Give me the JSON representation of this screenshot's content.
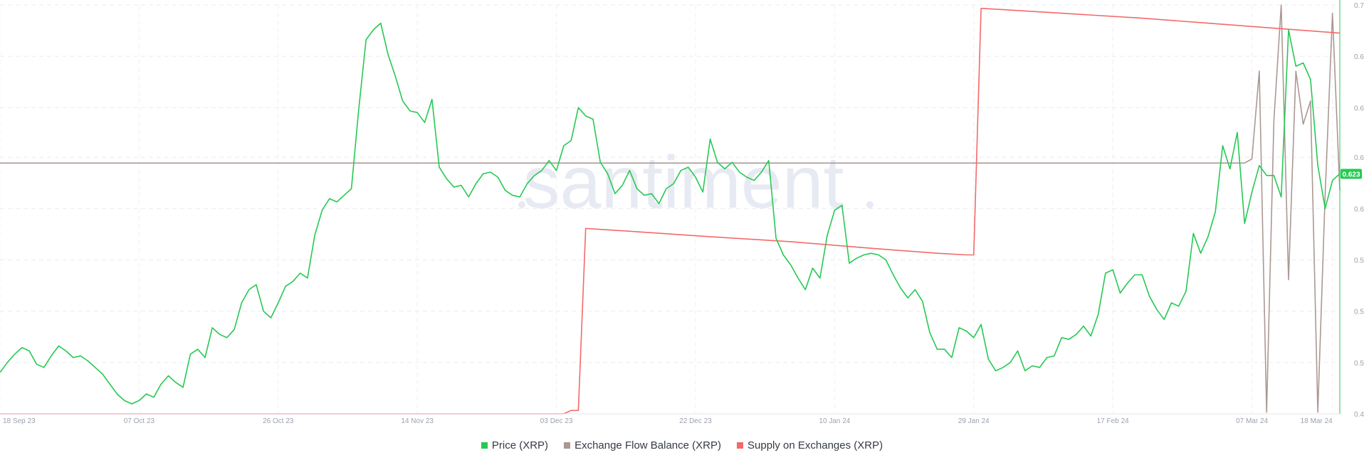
{
  "chart_data": {
    "type": "line",
    "watermark": "santiment",
    "x_ticks": [
      "18 Sep 23",
      "07 Oct 23",
      "26 Oct 23",
      "14 Nov 23",
      "03 Dec 23",
      "22 Dec 23",
      "10 Jan 24",
      "29 Jan 24",
      "17 Feb 24",
      "07 Mar 24",
      "18 Mar 24"
    ],
    "y_ticks": [
      "0.478",
      "0.509",
      "0.54",
      "0.571",
      "0.602",
      "0.633",
      "0.663",
      "0.694",
      "0.725"
    ],
    "ylim": [
      0.478,
      0.725
    ],
    "current_value_label": "0.623",
    "legend_position": "bottom-center",
    "grid": true,
    "series": [
      {
        "name": "Price (XRP)",
        "color": "#26c953",
        "points": [
          [
            "2023-09-18",
            0.503
          ],
          [
            "2023-09-19",
            0.509
          ],
          [
            "2023-09-20",
            0.514
          ],
          [
            "2023-09-21",
            0.518
          ],
          [
            "2023-09-22",
            0.516
          ],
          [
            "2023-09-23",
            0.508
          ],
          [
            "2023-09-24",
            0.506
          ],
          [
            "2023-09-25",
            0.513
          ],
          [
            "2023-09-26",
            0.519
          ],
          [
            "2023-09-27",
            0.516
          ],
          [
            "2023-09-28",
            0.512
          ],
          [
            "2023-09-29",
            0.513
          ],
          [
            "2023-09-30",
            0.51
          ],
          [
            "2023-10-01",
            0.506
          ],
          [
            "2023-10-02",
            0.502
          ],
          [
            "2023-10-03",
            0.496
          ],
          [
            "2023-10-04",
            0.49
          ],
          [
            "2023-10-05",
            0.486
          ],
          [
            "2023-10-06",
            0.484
          ],
          [
            "2023-10-07",
            0.486
          ],
          [
            "2023-10-08",
            0.49
          ],
          [
            "2023-10-09",
            0.488
          ],
          [
            "2023-10-10",
            0.496
          ],
          [
            "2023-10-11",
            0.501
          ],
          [
            "2023-10-12",
            0.497
          ],
          [
            "2023-10-13",
            0.494
          ],
          [
            "2023-10-14",
            0.514
          ],
          [
            "2023-10-15",
            0.517
          ],
          [
            "2023-10-16",
            0.512
          ],
          [
            "2023-10-17",
            0.53
          ],
          [
            "2023-10-18",
            0.526
          ],
          [
            "2023-10-19",
            0.524
          ],
          [
            "2023-10-20",
            0.529
          ],
          [
            "2023-10-21",
            0.545
          ],
          [
            "2023-10-22",
            0.553
          ],
          [
            "2023-10-23",
            0.556
          ],
          [
            "2023-10-24",
            0.54
          ],
          [
            "2023-10-25",
            0.536
          ],
          [
            "2023-10-26",
            0.545
          ],
          [
            "2023-10-27",
            0.555
          ],
          [
            "2023-10-28",
            0.558
          ],
          [
            "2023-10-29",
            0.563
          ],
          [
            "2023-10-30",
            0.56
          ],
          [
            "2023-10-31",
            0.586
          ],
          [
            "2023-11-01",
            0.601
          ],
          [
            "2023-11-02",
            0.608
          ],
          [
            "2023-11-03",
            0.606
          ],
          [
            "2023-11-04",
            0.61
          ],
          [
            "2023-11-05",
            0.614
          ],
          [
            "2023-11-06",
            0.662
          ],
          [
            "2023-11-07",
            0.704
          ],
          [
            "2023-11-08",
            0.71
          ],
          [
            "2023-11-09",
            0.714
          ],
          [
            "2023-11-10",
            0.695
          ],
          [
            "2023-11-11",
            0.682
          ],
          [
            "2023-11-12",
            0.667
          ],
          [
            "2023-11-13",
            0.661
          ],
          [
            "2023-11-14",
            0.66
          ],
          [
            "2023-11-15",
            0.654
          ],
          [
            "2023-11-16",
            0.668
          ],
          [
            "2023-11-17",
            0.627
          ],
          [
            "2023-11-18",
            0.62
          ],
          [
            "2023-11-19",
            0.615
          ],
          [
            "2023-11-20",
            0.616
          ],
          [
            "2023-11-21",
            0.609
          ],
          [
            "2023-11-22",
            0.617
          ],
          [
            "2023-11-23",
            0.623
          ],
          [
            "2023-11-24",
            0.624
          ],
          [
            "2023-11-25",
            0.621
          ],
          [
            "2023-11-26",
            0.613
          ],
          [
            "2023-11-27",
            0.61
          ],
          [
            "2023-11-28",
            0.609
          ],
          [
            "2023-11-29",
            0.617
          ],
          [
            "2023-11-30",
            0.622
          ],
          [
            "2023-12-01",
            0.625
          ],
          [
            "2023-12-02",
            0.631
          ],
          [
            "2023-12-03",
            0.625
          ],
          [
            "2023-12-04",
            0.64
          ],
          [
            "2023-12-05",
            0.643
          ],
          [
            "2023-12-06",
            0.663
          ],
          [
            "2023-12-07",
            0.658
          ],
          [
            "2023-12-08",
            0.656
          ],
          [
            "2023-12-09",
            0.63
          ],
          [
            "2023-12-10",
            0.623
          ],
          [
            "2023-12-11",
            0.611
          ],
          [
            "2023-12-12",
            0.616
          ],
          [
            "2023-12-13",
            0.625
          ],
          [
            "2023-12-14",
            0.614
          ],
          [
            "2023-12-15",
            0.61
          ],
          [
            "2023-12-16",
            0.611
          ],
          [
            "2023-12-17",
            0.605
          ],
          [
            "2023-12-18",
            0.614
          ],
          [
            "2023-12-19",
            0.617
          ],
          [
            "2023-12-20",
            0.625
          ],
          [
            "2023-12-21",
            0.627
          ],
          [
            "2023-12-22",
            0.621
          ],
          [
            "2023-12-23",
            0.612
          ],
          [
            "2023-12-24",
            0.644
          ],
          [
            "2023-12-25",
            0.63
          ],
          [
            "2023-12-26",
            0.626
          ],
          [
            "2023-12-27",
            0.63
          ],
          [
            "2023-12-28",
            0.624
          ],
          [
            "2023-12-29",
            0.621
          ],
          [
            "2023-12-30",
            0.619
          ],
          [
            "2023-12-31",
            0.624
          ],
          [
            "2024-01-01",
            0.631
          ],
          [
            "2024-01-02",
            0.584
          ],
          [
            "2024-01-03",
            0.574
          ],
          [
            "2024-01-04",
            0.568
          ],
          [
            "2024-01-05",
            0.56
          ],
          [
            "2024-01-06",
            0.553
          ],
          [
            "2024-01-07",
            0.566
          ],
          [
            "2024-01-08",
            0.56
          ],
          [
            "2024-01-09",
            0.586
          ],
          [
            "2024-01-10",
            0.601
          ],
          [
            "2024-01-11",
            0.604
          ],
          [
            "2024-01-12",
            0.569
          ],
          [
            "2024-01-13",
            0.572
          ],
          [
            "2024-01-14",
            0.574
          ],
          [
            "2024-01-15",
            0.575
          ],
          [
            "2024-01-16",
            0.574
          ],
          [
            "2024-01-17",
            0.571
          ],
          [
            "2024-01-18",
            0.562
          ],
          [
            "2024-01-19",
            0.554
          ],
          [
            "2024-01-20",
            0.548
          ],
          [
            "2024-01-21",
            0.553
          ],
          [
            "2024-01-22",
            0.546
          ],
          [
            "2024-01-23",
            0.527
          ],
          [
            "2024-01-24",
            0.517
          ],
          [
            "2024-01-25",
            0.517
          ],
          [
            "2024-01-26",
            0.512
          ],
          [
            "2024-01-27",
            0.53
          ],
          [
            "2024-01-28",
            0.528
          ],
          [
            "2024-01-29",
            0.524
          ],
          [
            "2024-01-30",
            0.532
          ],
          [
            "2024-01-31",
            0.511
          ],
          [
            "2024-02-01",
            0.504
          ],
          [
            "2024-02-02",
            0.506
          ],
          [
            "2024-02-03",
            0.509
          ],
          [
            "2024-02-04",
            0.516
          ],
          [
            "2024-02-05",
            0.504
          ],
          [
            "2024-02-06",
            0.507
          ],
          [
            "2024-02-07",
            0.506
          ],
          [
            "2024-02-08",
            0.512
          ],
          [
            "2024-02-09",
            0.513
          ],
          [
            "2024-02-10",
            0.524
          ],
          [
            "2024-02-11",
            0.523
          ],
          [
            "2024-02-12",
            0.526
          ],
          [
            "2024-02-13",
            0.531
          ],
          [
            "2024-02-14",
            0.525
          ],
          [
            "2024-02-15",
            0.538
          ],
          [
            "2024-02-16",
            0.563
          ],
          [
            "2024-02-17",
            0.565
          ],
          [
            "2024-02-18",
            0.551
          ],
          [
            "2024-02-19",
            0.557
          ],
          [
            "2024-02-20",
            0.562
          ],
          [
            "2024-02-21",
            0.562
          ],
          [
            "2024-02-22",
            0.549
          ],
          [
            "2024-02-23",
            0.541
          ],
          [
            "2024-02-24",
            0.535
          ],
          [
            "2024-02-25",
            0.545
          ],
          [
            "2024-02-26",
            0.543
          ],
          [
            "2024-02-27",
            0.552
          ],
          [
            "2024-02-28",
            0.587
          ],
          [
            "2024-02-29",
            0.575
          ],
          [
            "2024-03-01",
            0.585
          ],
          [
            "2024-03-02",
            0.6
          ],
          [
            "2024-03-03",
            0.64
          ],
          [
            "2024-03-04",
            0.626
          ],
          [
            "2024-03-05",
            0.648
          ],
          [
            "2024-03-06",
            0.593
          ],
          [
            "2024-03-07",
            0.612
          ],
          [
            "2024-03-08",
            0.628
          ],
          [
            "2024-03-09",
            0.622
          ],
          [
            "2024-03-10",
            0.622
          ],
          [
            "2024-03-11",
            0.609
          ],
          [
            "2024-03-12",
            0.71
          ],
          [
            "2024-03-13",
            0.688
          ],
          [
            "2024-03-14",
            0.69
          ],
          [
            "2024-03-15",
            0.68
          ],
          [
            "2024-03-16",
            0.628
          ],
          [
            "2024-03-17",
            0.602
          ],
          [
            "2024-03-18",
            0.619
          ],
          [
            "2024-03-19",
            0.623
          ]
        ]
      },
      {
        "name": "Exchange Flow Balance (XRP)",
        "color": "#ab9893",
        "points": [
          [
            "2023-09-18",
            0.6295
          ],
          [
            "2024-03-05",
            0.6295
          ],
          [
            "2024-03-06",
            0.6295
          ],
          [
            "2024-03-07",
            0.632
          ],
          [
            "2024-03-08",
            0.685
          ],
          [
            "2024-03-09",
            0.479
          ],
          [
            "2024-03-10",
            0.655
          ],
          [
            "2024-03-11",
            0.725
          ],
          [
            "2024-03-12",
            0.559
          ],
          [
            "2024-03-13",
            0.685
          ],
          [
            "2024-03-14",
            0.653
          ],
          [
            "2024-03-15",
            0.667
          ],
          [
            "2024-03-16",
            0.479
          ],
          [
            "2024-03-17",
            0.61
          ],
          [
            "2024-03-18",
            0.72
          ],
          [
            "2024-03-19",
            0.613
          ]
        ]
      },
      {
        "name": "Supply on Exchanges (XRP)",
        "color": "#f26a6a",
        "points": [
          [
            "2023-09-18",
            0.478
          ],
          [
            "2023-12-04",
            0.478
          ],
          [
            "2023-12-05",
            0.48
          ],
          [
            "2023-12-06",
            0.48
          ],
          [
            "2023-12-07",
            0.59
          ],
          [
            "2023-12-14",
            0.588
          ],
          [
            "2023-12-24",
            0.585
          ],
          [
            "2024-01-04",
            0.582
          ],
          [
            "2024-01-15",
            0.578
          ],
          [
            "2024-01-24",
            0.575
          ],
          [
            "2024-01-28",
            0.574
          ],
          [
            "2024-01-29",
            0.574
          ],
          [
            "2024-01-30",
            0.723
          ],
          [
            "2024-02-10",
            0.72
          ],
          [
            "2024-02-21",
            0.717
          ],
          [
            "2024-03-01",
            0.714
          ],
          [
            "2024-03-10",
            0.711
          ],
          [
            "2024-03-19",
            0.708
          ]
        ]
      }
    ]
  }
}
